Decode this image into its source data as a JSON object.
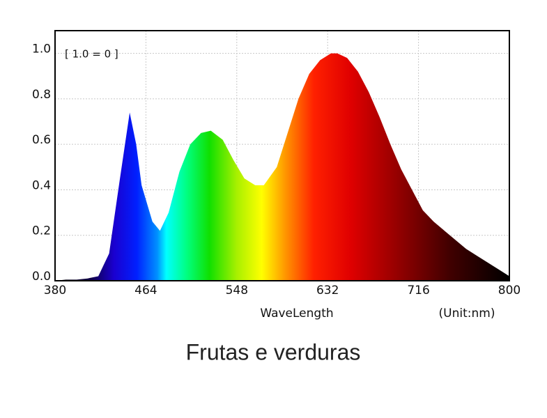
{
  "chart_data": {
    "type": "area",
    "caption": "Frutas e verduras",
    "annotation": "[ 1.0 = 0 ]",
    "x_label": "WaveLength",
    "unit_label": "(Unit:nm)",
    "x": [
      380,
      390,
      400,
      410,
      420,
      430,
      440,
      449,
      455,
      460,
      470,
      477,
      485,
      495,
      505,
      515,
      524,
      535,
      545,
      555,
      565,
      573,
      585,
      595,
      605,
      615,
      625,
      635,
      641,
      650,
      660,
      670,
      680,
      690,
      700,
      710,
      720,
      730,
      740,
      750,
      760,
      770,
      780,
      790,
      800
    ],
    "series": [
      {
        "values": [
          0.0,
          0.005,
          0.005,
          0.01,
          0.02,
          0.12,
          0.45,
          0.74,
          0.6,
          0.42,
          0.26,
          0.22,
          0.3,
          0.48,
          0.6,
          0.65,
          0.66,
          0.62,
          0.53,
          0.45,
          0.42,
          0.42,
          0.5,
          0.65,
          0.8,
          0.91,
          0.97,
          1.0,
          1.0,
          0.98,
          0.92,
          0.83,
          0.72,
          0.6,
          0.49,
          0.4,
          0.31,
          0.26,
          0.22,
          0.18,
          0.14,
          0.11,
          0.08,
          0.05,
          0.02
        ]
      }
    ],
    "xlim": [
      380,
      800
    ],
    "xticks": [
      380,
      464,
      548,
      632,
      716,
      800
    ],
    "ylim": [
      0,
      1.1
    ],
    "yticks": [
      {
        "value": 0,
        "label": "0.0"
      },
      0.2,
      0.4,
      0.6,
      0.8,
      {
        "value": 1,
        "label": "1.0"
      }
    ],
    "grid": true
  }
}
